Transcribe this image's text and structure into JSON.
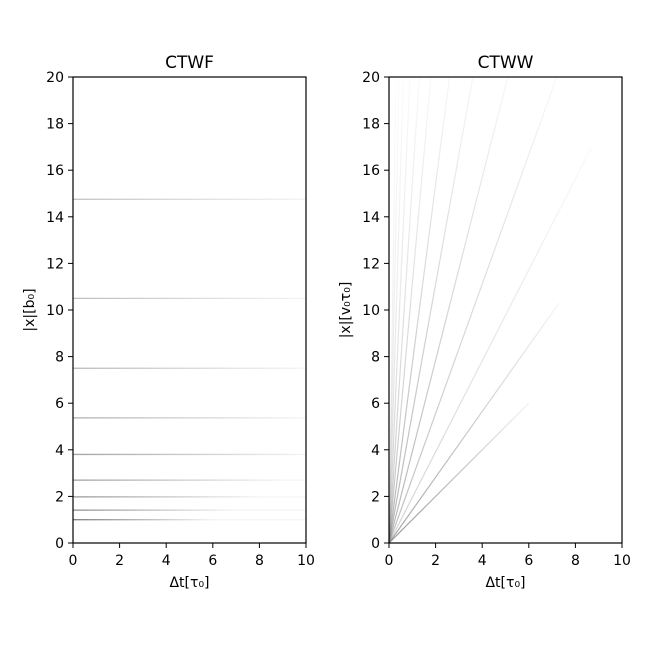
{
  "chart_data": [
    {
      "type": "line",
      "title": "CTWF",
      "xlabel": "Δt[τ₀]",
      "ylabel": "|x|[b₀]",
      "xlim": [
        0,
        10
      ],
      "ylim": [
        0,
        20
      ],
      "xticks": [
        "0",
        "2",
        "4",
        "6",
        "8",
        "10"
      ],
      "yticks": [
        "0",
        "2",
        "4",
        "6",
        "8",
        "10",
        "12",
        "14",
        "16",
        "18",
        "20"
      ],
      "grid": false,
      "description_of_marks": "horizontal lines at constant |x|, grey, fading with Δt",
      "series": [
        {
          "y": 1.0,
          "x": [
            0,
            10
          ],
          "fade_end": 6
        },
        {
          "y": 1.41,
          "x": [
            0,
            10
          ],
          "fade_end": 7
        },
        {
          "y": 1.98,
          "x": [
            0,
            10
          ],
          "fade_end": 8
        },
        {
          "y": 2.7,
          "x": [
            0,
            10
          ],
          "fade_end": 9
        },
        {
          "y": 3.8,
          "x": [
            0,
            10
          ],
          "fade_end": 10
        },
        {
          "y": 5.37,
          "x": [
            0,
            10
          ],
          "fade_end": 10
        },
        {
          "y": 7.5,
          "x": [
            0,
            10
          ],
          "fade_end": 10
        },
        {
          "y": 10.5,
          "x": [
            0,
            10
          ],
          "fade_end": 10
        },
        {
          "y": 14.75,
          "x": [
            0,
            10
          ],
          "fade_end": 10
        }
      ],
      "color": "#777777"
    },
    {
      "type": "line",
      "title": "CTWW",
      "xlabel": "Δt[τ₀]",
      "ylabel": "|x|[v₀τ₀]",
      "xlim": [
        0,
        10
      ],
      "ylim": [
        0,
        20
      ],
      "xticks": [
        "0",
        "2",
        "4",
        "6",
        "8",
        "10"
      ],
      "yticks": [
        "0",
        "2",
        "4",
        "6",
        "8",
        "10",
        "12",
        "14",
        "16",
        "18",
        "20"
      ],
      "grid": false,
      "description_of_marks": "straight lines from origin, grey, fading with distance",
      "series": [
        {
          "end": [
            6.0,
            6.0
          ],
          "opacity": 0.35
        },
        {
          "end": [
            7.3,
            10.3
          ],
          "opacity": 0.3
        },
        {
          "end": [
            8.7,
            17.0
          ],
          "opacity": 0.15
        },
        {
          "end": [
            7.2,
            20
          ],
          "opacity": 0.22
        },
        {
          "end": [
            5.1,
            20
          ],
          "opacity": 0.25
        },
        {
          "end": [
            3.6,
            20
          ],
          "opacity": 0.25
        },
        {
          "end": [
            2.6,
            20
          ],
          "opacity": 0.25
        },
        {
          "end": [
            1.8,
            20
          ],
          "opacity": 0.2
        },
        {
          "end": [
            1.3,
            20
          ],
          "opacity": 0.18
        },
        {
          "end": [
            0.9,
            20
          ],
          "opacity": 0.15
        },
        {
          "end": [
            0.62,
            20
          ],
          "opacity": 0.12
        },
        {
          "end": [
            0.43,
            20
          ],
          "opacity": 0.1
        },
        {
          "end": [
            0.3,
            20
          ],
          "opacity": 0.08
        }
      ],
      "color": "#777777"
    }
  ]
}
